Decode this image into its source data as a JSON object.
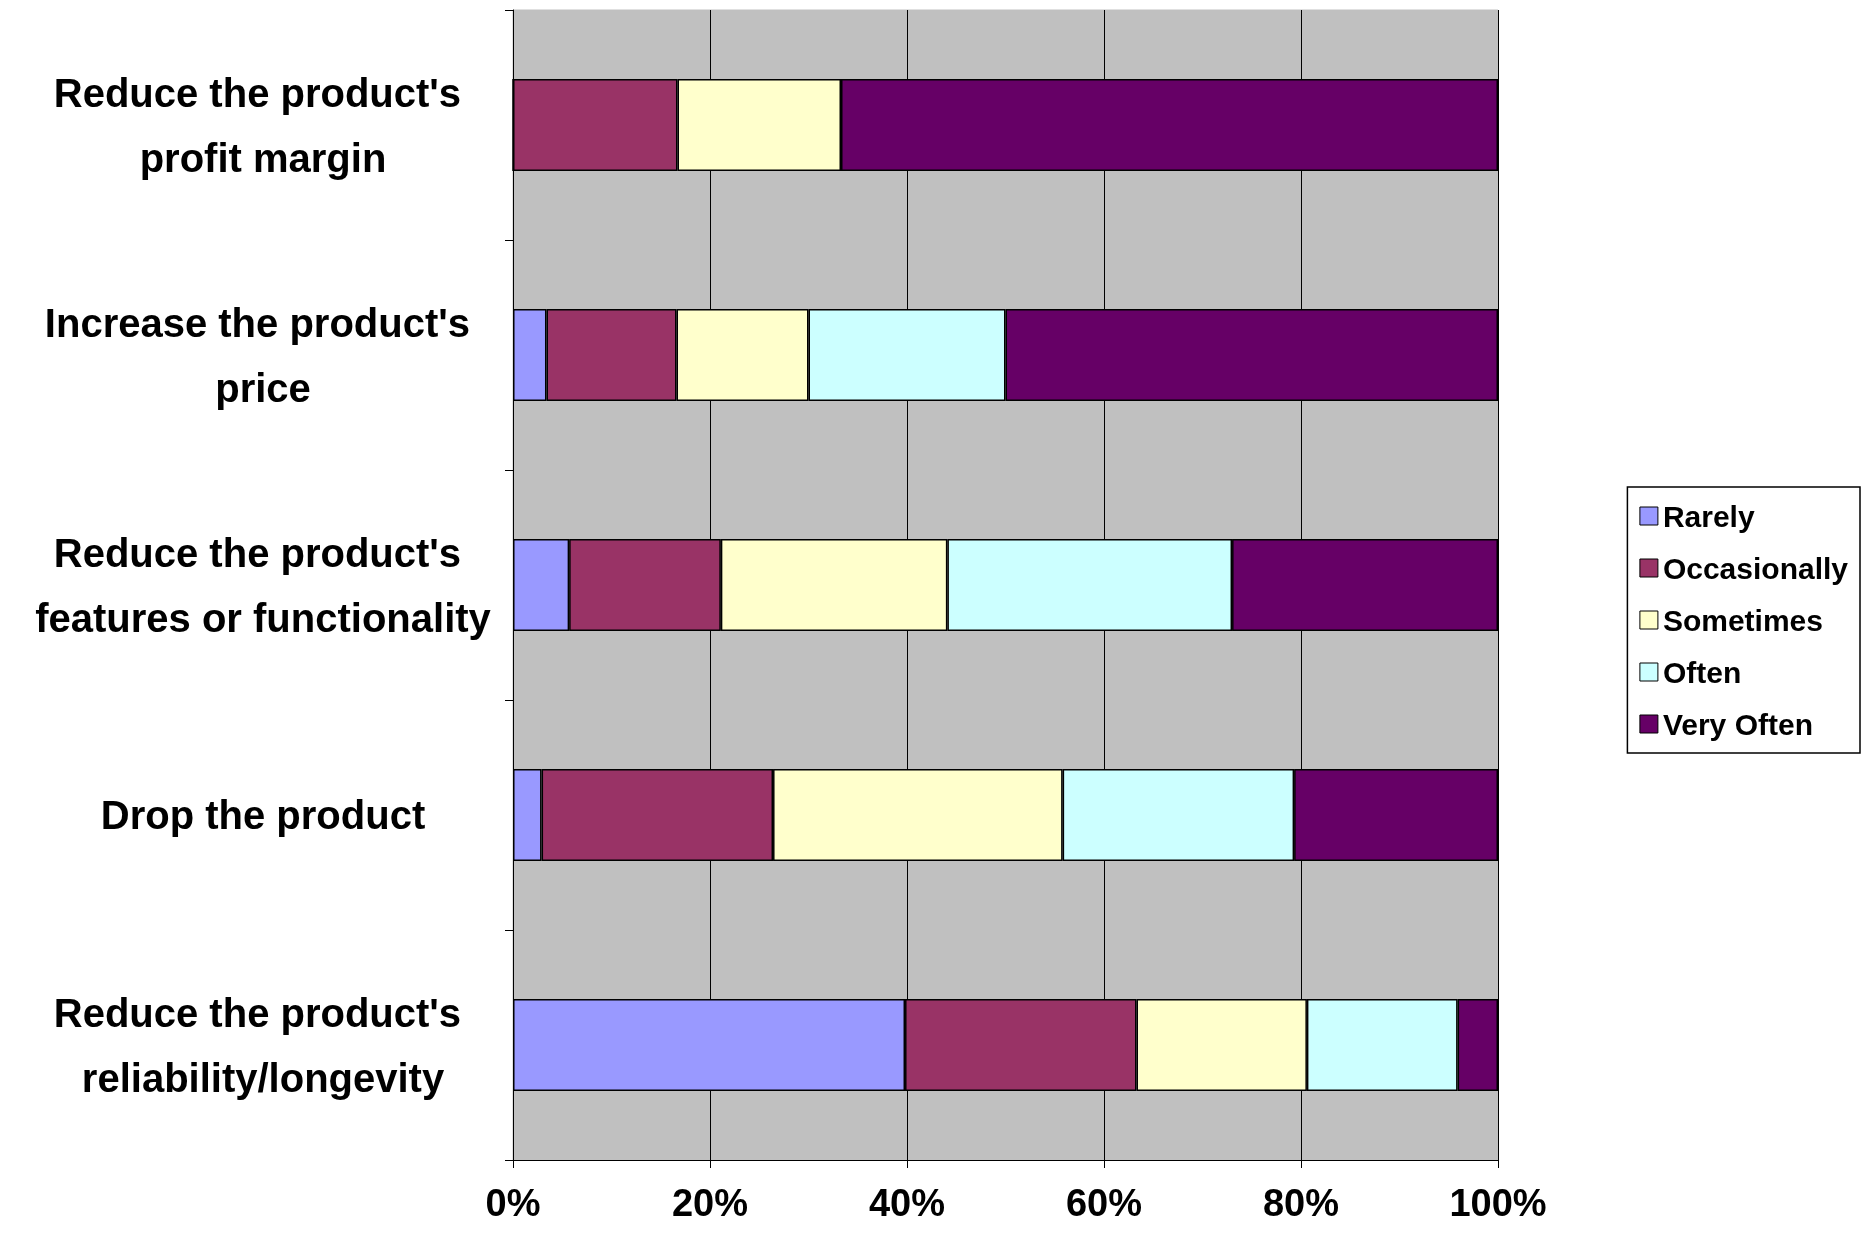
{
  "chart_data": {
    "type": "bar",
    "orientation": "horizontal",
    "stacked": true,
    "categories": [
      "Reduce the product's profit margin",
      "Increase the product's price",
      "Reduce the product's features or functionality",
      "Drop the product",
      "Reduce the product's reliability/longevity"
    ],
    "series": [
      {
        "name": "Rarely",
        "color": "#9999ff",
        "values": [
          0,
          3.4,
          5.7,
          2.9,
          39.8
        ]
      },
      {
        "name": "Occasionally",
        "color": "#993366",
        "values": [
          16.7,
          13.2,
          15.4,
          23.5,
          23.5
        ]
      },
      {
        "name": "Sometimes",
        "color": "#ffffcc",
        "values": [
          16.6,
          13.4,
          23.0,
          29.4,
          17.3
        ]
      },
      {
        "name": "Often",
        "color": "#ccffff",
        "values": [
          0,
          20.0,
          28.9,
          23.5,
          15.3
        ]
      },
      {
        "name": "Very Often",
        "color": "#660066",
        "values": [
          66.7,
          50.0,
          27.0,
          20.7,
          4.1
        ]
      }
    ],
    "xlim": [
      0,
      100
    ],
    "xticks": [
      {
        "value": 0,
        "label": "0%"
      },
      {
        "value": 20,
        "label": "20%"
      },
      {
        "value": 40,
        "label": "40%"
      },
      {
        "value": 60,
        "label": "60%"
      },
      {
        "value": 80,
        "label": "80%"
      },
      {
        "value": 100,
        "label": "100%"
      }
    ],
    "grid": "x",
    "legend": "right"
  }
}
